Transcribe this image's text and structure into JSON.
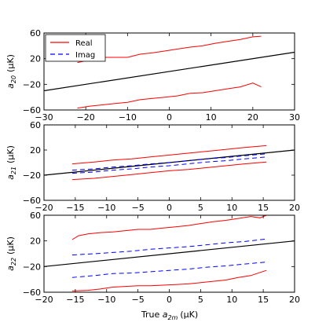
{
  "figure": {
    "xlabel_prefix": "True ",
    "xlabel_sym": "a",
    "xlabel_sub": "2m",
    "xlabel_unit": "(μK)"
  },
  "legend": {
    "entries": [
      {
        "label": "Real",
        "color": "#ff0000",
        "dash": "solid"
      },
      {
        "label": "Imag",
        "color": "#0000ff",
        "dash": "dashed"
      }
    ]
  },
  "colors": {
    "real": "#ff0000",
    "imag": "#0000ff",
    "reference": "#000000"
  },
  "chart_data": [
    {
      "type": "line",
      "ylabel_sym": "a",
      "ylabel_sub": "20",
      "ylabel_unit": "(μK)",
      "xlim": [
        -30,
        30
      ],
      "ylim": [
        -60,
        60
      ],
      "xticks": [
        -30,
        -20,
        -10,
        0,
        10,
        20,
        30
      ],
      "yticks": [
        -60,
        -20,
        20,
        60
      ],
      "xtick_labels": [
        "−30",
        "−20",
        "−10",
        "0",
        "10",
        "20",
        "30"
      ],
      "ytick_labels": [
        "−60",
        "−20",
        "20",
        "60"
      ],
      "legend": true,
      "series": [
        {
          "role": "reference",
          "x": [
            -30,
            30
          ],
          "y": [
            -30,
            30
          ]
        },
        {
          "role": "real",
          "x": [
            -22,
            -19,
            -16,
            -13,
            -10,
            -7,
            -4,
            -1,
            2,
            5,
            8,
            11,
            14,
            17,
            20,
            22
          ],
          "y": [
            14,
            18,
            22,
            22,
            22,
            27,
            29,
            32,
            35,
            38,
            40,
            44,
            47,
            50,
            54,
            55
          ]
        },
        {
          "role": "real",
          "x": [
            -22,
            -19,
            -16,
            -13,
            -10,
            -7,
            -4,
            -1,
            2,
            5,
            8,
            11,
            14,
            17,
            20,
            22
          ],
          "y": [
            -57,
            -54,
            -52,
            -50,
            -48,
            -44,
            -42,
            -40,
            -38,
            -34,
            -33,
            -30,
            -27,
            -24,
            -18,
            -24
          ]
        }
      ]
    },
    {
      "type": "line",
      "ylabel_sym": "a",
      "ylabel_sub": "21",
      "ylabel_unit": "(μK)",
      "xlim": [
        -20,
        20
      ],
      "ylim": [
        -60,
        60
      ],
      "xticks": [
        -20,
        -15,
        -10,
        -5,
        0,
        5,
        10,
        15,
        20
      ],
      "yticks": [
        -60,
        -20,
        20,
        60
      ],
      "xtick_labels": [
        "−20",
        "−15",
        "−10",
        "−5",
        "0",
        "5",
        "10",
        "15",
        "20"
      ],
      "ytick_labels": [
        "−60",
        "−20",
        "20",
        "60"
      ],
      "legend": false,
      "series": [
        {
          "role": "reference",
          "x": [
            -20,
            20
          ],
          "y": [
            -20,
            20
          ]
        },
        {
          "role": "real",
          "x": [
            -15.5,
            -12,
            -9,
            -6,
            -3,
            0,
            3,
            6,
            9,
            12,
            15.5
          ],
          "y": [
            -2,
            1,
            4,
            6,
            9,
            12,
            15,
            18,
            21,
            24,
            27
          ]
        },
        {
          "role": "real",
          "x": [
            -15.5,
            -12,
            -9,
            -6,
            -3,
            0,
            3,
            6,
            9,
            12,
            15.5
          ],
          "y": [
            -27,
            -25,
            -22,
            -19,
            -16,
            -13,
            -11,
            -8,
            -5,
            -2,
            1
          ]
        },
        {
          "role": "imag",
          "x": [
            -15.5,
            -12,
            -9,
            -6,
            -3,
            0,
            3,
            6,
            9,
            12,
            15.5
          ],
          "y": [
            -12,
            -10,
            -7,
            -5,
            -2,
            0,
            3,
            6,
            8,
            11,
            14
          ]
        },
        {
          "role": "imag",
          "x": [
            -15.5,
            -12,
            -9,
            -6,
            -3,
            0,
            3,
            6,
            9,
            12,
            15.5
          ],
          "y": [
            -17,
            -15,
            -12,
            -10,
            -7,
            -5,
            -2,
            1,
            3,
            6,
            9
          ]
        }
      ]
    },
    {
      "type": "line",
      "ylabel_sym": "a",
      "ylabel_sub": "22",
      "ylabel_unit": "(μK)",
      "xlim": [
        -20,
        20
      ],
      "ylim": [
        -60,
        60
      ],
      "xticks": [
        -20,
        -15,
        -10,
        -5,
        0,
        5,
        10,
        15,
        20
      ],
      "yticks": [
        -60,
        -20,
        20,
        60
      ],
      "xtick_labels": [
        "−20",
        "−15",
        "−10",
        "−5",
        "0",
        "5",
        "10",
        "15",
        "20"
      ],
      "ytick_labels": [
        "−60",
        "−20",
        "20",
        "60"
      ],
      "legend": false,
      "series": [
        {
          "role": "reference",
          "x": [
            -20,
            20
          ],
          "y": [
            -20,
            20
          ]
        },
        {
          "role": "real",
          "x": [
            -15.5,
            -14.5,
            -13,
            -11,
            -9,
            -7,
            -5,
            -3,
            -1,
            1,
            3,
            5,
            7,
            9,
            11,
            13,
            14.5,
            15.5
          ],
          "y": [
            22,
            28,
            31,
            33,
            34,
            36,
            38,
            38,
            40,
            42,
            44,
            47,
            50,
            52,
            55,
            58,
            56,
            60
          ]
        },
        {
          "role": "imag",
          "x": [
            -15.5,
            -12,
            -9,
            -6,
            -3,
            0,
            3,
            6,
            9,
            12,
            15.5
          ],
          "y": [
            -2,
            0,
            2,
            4,
            7,
            9,
            11,
            14,
            17,
            19,
            23
          ]
        },
        {
          "role": "imag",
          "x": [
            -15.5,
            -12,
            -9,
            -6,
            -3,
            0,
            3,
            6,
            9,
            12,
            15.5
          ],
          "y": [
            -37,
            -34,
            -31,
            -30,
            -28,
            -26,
            -24,
            -21,
            -19,
            -16,
            -13
          ]
        },
        {
          "role": "real",
          "x": [
            -15.5,
            -13,
            -11,
            -9,
            -7,
            -5,
            -3,
            -1,
            1,
            3,
            5,
            7,
            9,
            11,
            13,
            15.5
          ],
          "y": [
            -58,
            -57,
            -55,
            -52,
            -51,
            -50,
            -50,
            -49,
            -48,
            -47,
            -45,
            -43,
            -41,
            -37,
            -34,
            -26
          ]
        }
      ]
    }
  ]
}
